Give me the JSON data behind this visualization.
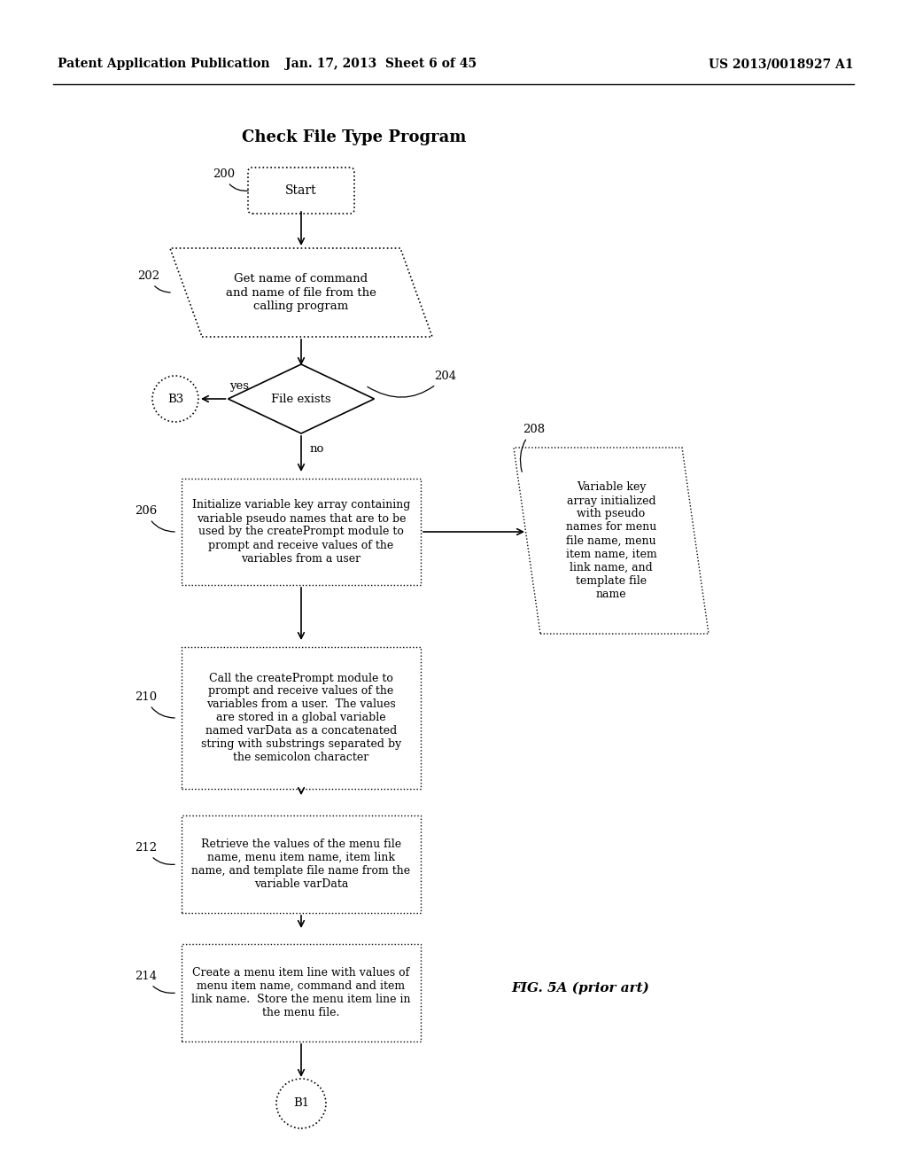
{
  "bg_color": "#ffffff",
  "header_left": "Patent Application Publication",
  "header_mid": "Jan. 17, 2013  Sheet 6 of 45",
  "header_right": "US 2013/0018927 A1",
  "title": "Check File Type Program",
  "fig_label": "FIG. 5A (prior art)",
  "start_text": "Start",
  "b3_text": "B3",
  "b1_text": "B1",
  "yes_text": "yes",
  "no_text": "no",
  "label_200": "200",
  "label_202": "202",
  "label_204": "204",
  "label_206": "206",
  "label_208": "208",
  "label_210": "210",
  "label_212": "212",
  "label_214": "214",
  "text_202": "Get name of command\nand name of file from the\ncalling program",
  "text_204": "File exists",
  "text_206": "Initialize variable key array containing\nvariable pseudo names that are to be\nused by the createPrompt module to\nprompt and receive values of the\nvariables from a user",
  "text_208": "Variable key\narray initialized\nwith pseudo\nnames for menu\nfile name, menu\nitem name, item\nlink name, and\ntemplate file\nname",
  "text_210": "Call the createPrompt module to\nprompt and receive values of the\nvariables from a user.  The values\nare stored in a global variable\nnamed varData as a concatenated\nstring with substrings separated by\nthe semicolon character",
  "text_212": "Retrieve the values of the menu file\nname, menu item name, item link\nname, and template file name from the\nvariable varData",
  "text_214": "Create a menu item line with values of\nmenu item name, command and item\nlink name.  Store the menu item line in\nthe menu file."
}
